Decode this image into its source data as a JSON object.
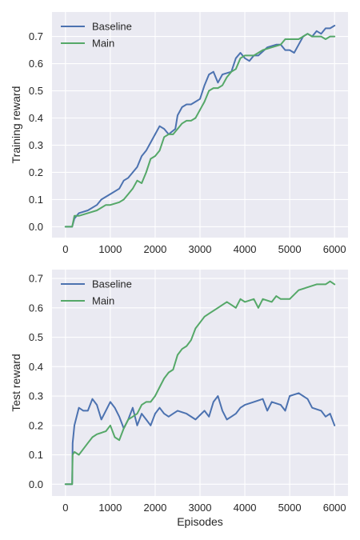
{
  "chart_data": [
    {
      "type": "line",
      "title": "",
      "xlabel": "",
      "ylabel": "Training reward",
      "xlim": [
        -300,
        6300
      ],
      "ylim": [
        -0.04,
        0.79
      ],
      "xticks": [
        0,
        1000,
        2000,
        3000,
        4000,
        5000,
        6000
      ],
      "yticks": [
        0.0,
        0.1,
        0.2,
        0.3,
        0.4,
        0.5,
        0.6,
        0.7
      ],
      "xtick_labels": [
        "0",
        "1000",
        "2000",
        "3000",
        "4000",
        "5000",
        "6000"
      ],
      "ytick_labels": [
        "0.0",
        "0.1",
        "0.2",
        "0.3",
        "0.4",
        "0.5",
        "0.6",
        "0.7"
      ],
      "grid": true,
      "legend": "top-left",
      "series": [
        {
          "name": "Baseline",
          "color": "#4c72b0",
          "x": [
            0,
            150,
            200,
            300,
            500,
            700,
            800,
            1000,
            1200,
            1300,
            1400,
            1600,
            1700,
            1800,
            1900,
            2000,
            2100,
            2200,
            2300,
            2450,
            2500,
            2600,
            2700,
            2800,
            2900,
            3000,
            3100,
            3200,
            3300,
            3400,
            3500,
            3700,
            3800,
            3900,
            4000,
            4100,
            4200,
            4300,
            4500,
            4700,
            4800,
            4900,
            5000,
            5100,
            5200,
            5300,
            5400,
            5500,
            5600,
            5700,
            5800,
            5900,
            6000
          ],
          "y": [
            0.0,
            0.0,
            0.03,
            0.05,
            0.06,
            0.08,
            0.1,
            0.12,
            0.14,
            0.17,
            0.18,
            0.22,
            0.26,
            0.28,
            0.31,
            0.34,
            0.37,
            0.36,
            0.34,
            0.36,
            0.41,
            0.44,
            0.45,
            0.45,
            0.46,
            0.47,
            0.52,
            0.56,
            0.57,
            0.53,
            0.56,
            0.57,
            0.62,
            0.64,
            0.62,
            0.61,
            0.63,
            0.63,
            0.66,
            0.67,
            0.67,
            0.65,
            0.65,
            0.64,
            0.67,
            0.7,
            0.71,
            0.7,
            0.72,
            0.71,
            0.73,
            0.73,
            0.74
          ]
        },
        {
          "name": "Main",
          "color": "#55a868",
          "x": [
            0,
            150,
            200,
            300,
            500,
            700,
            800,
            900,
            1000,
            1200,
            1300,
            1400,
            1500,
            1600,
            1700,
            1800,
            1900,
            2000,
            2100,
            2200,
            2300,
            2400,
            2500,
            2600,
            2700,
            2800,
            2900,
            3000,
            3100,
            3200,
            3300,
            3400,
            3500,
            3600,
            3700,
            3800,
            3900,
            4000,
            4200,
            4400,
            4600,
            4800,
            4900,
            5000,
            5200,
            5300,
            5400,
            5500,
            5600,
            5700,
            5800,
            5900,
            6000
          ],
          "y": [
            0.0,
            0.0,
            0.04,
            0.04,
            0.05,
            0.06,
            0.07,
            0.08,
            0.08,
            0.09,
            0.1,
            0.12,
            0.14,
            0.17,
            0.16,
            0.2,
            0.25,
            0.26,
            0.28,
            0.33,
            0.34,
            0.34,
            0.36,
            0.38,
            0.39,
            0.39,
            0.4,
            0.43,
            0.46,
            0.5,
            0.51,
            0.51,
            0.52,
            0.55,
            0.57,
            0.58,
            0.62,
            0.63,
            0.63,
            0.65,
            0.66,
            0.67,
            0.69,
            0.69,
            0.69,
            0.7,
            0.71,
            0.7,
            0.7,
            0.7,
            0.69,
            0.7,
            0.7
          ]
        }
      ]
    },
    {
      "type": "line",
      "title": "",
      "xlabel": "Episodes",
      "ylabel": "Test reward",
      "xlim": [
        -300,
        6300
      ],
      "ylim": [
        -0.04,
        0.73
      ],
      "xticks": [
        0,
        1000,
        2000,
        3000,
        4000,
        5000,
        6000
      ],
      "yticks": [
        0.0,
        0.1,
        0.2,
        0.3,
        0.4,
        0.5,
        0.6,
        0.7
      ],
      "xtick_labels": [
        "0",
        "1000",
        "2000",
        "3000",
        "4000",
        "5000",
        "6000"
      ],
      "ytick_labels": [
        "0.0",
        "0.1",
        "0.2",
        "0.3",
        "0.4",
        "0.5",
        "0.6",
        "0.7"
      ],
      "grid": true,
      "legend": "top-left",
      "series": [
        {
          "name": "Baseline",
          "color": "#4c72b0",
          "x": [
            0,
            150,
            160,
            200,
            300,
            400,
            500,
            600,
            700,
            800,
            900,
            1000,
            1100,
            1200,
            1300,
            1400,
            1500,
            1600,
            1700,
            1800,
            1900,
            2000,
            2100,
            2200,
            2300,
            2400,
            2500,
            2700,
            2900,
            3100,
            3200,
            3300,
            3400,
            3500,
            3600,
            3700,
            3800,
            3900,
            4000,
            4200,
            4400,
            4500,
            4600,
            4800,
            4900,
            5000,
            5200,
            5400,
            5500,
            5700,
            5800,
            5900,
            6000
          ],
          "y": [
            0.0,
            0.0,
            0.14,
            0.2,
            0.26,
            0.25,
            0.25,
            0.29,
            0.27,
            0.22,
            0.25,
            0.28,
            0.26,
            0.23,
            0.19,
            0.22,
            0.26,
            0.2,
            0.24,
            0.22,
            0.2,
            0.24,
            0.26,
            0.24,
            0.23,
            0.24,
            0.25,
            0.24,
            0.22,
            0.25,
            0.23,
            0.28,
            0.3,
            0.25,
            0.22,
            0.23,
            0.24,
            0.26,
            0.27,
            0.28,
            0.29,
            0.25,
            0.28,
            0.27,
            0.25,
            0.3,
            0.31,
            0.29,
            0.26,
            0.25,
            0.23,
            0.24,
            0.2
          ]
        },
        {
          "name": "Main",
          "color": "#55a868",
          "x": [
            0,
            150,
            160,
            200,
            300,
            400,
            500,
            600,
            700,
            900,
            1000,
            1100,
            1200,
            1300,
            1400,
            1500,
            1600,
            1700,
            1800,
            1900,
            2000,
            2100,
            2200,
            2300,
            2400,
            2500,
            2600,
            2700,
            2800,
            2900,
            3000,
            3100,
            3200,
            3400,
            3600,
            3700,
            3800,
            3900,
            4000,
            4200,
            4300,
            4400,
            4600,
            4700,
            4800,
            5000,
            5200,
            5400,
            5600,
            5800,
            5900,
            6000
          ],
          "y": [
            0.0,
            0.0,
            0.1,
            0.11,
            0.1,
            0.12,
            0.14,
            0.16,
            0.17,
            0.18,
            0.2,
            0.16,
            0.15,
            0.19,
            0.22,
            0.23,
            0.24,
            0.27,
            0.28,
            0.28,
            0.3,
            0.33,
            0.36,
            0.38,
            0.39,
            0.44,
            0.46,
            0.47,
            0.49,
            0.53,
            0.55,
            0.57,
            0.58,
            0.6,
            0.62,
            0.61,
            0.6,
            0.63,
            0.62,
            0.63,
            0.6,
            0.63,
            0.62,
            0.64,
            0.63,
            0.63,
            0.66,
            0.67,
            0.68,
            0.68,
            0.69,
            0.68
          ]
        }
      ]
    }
  ]
}
